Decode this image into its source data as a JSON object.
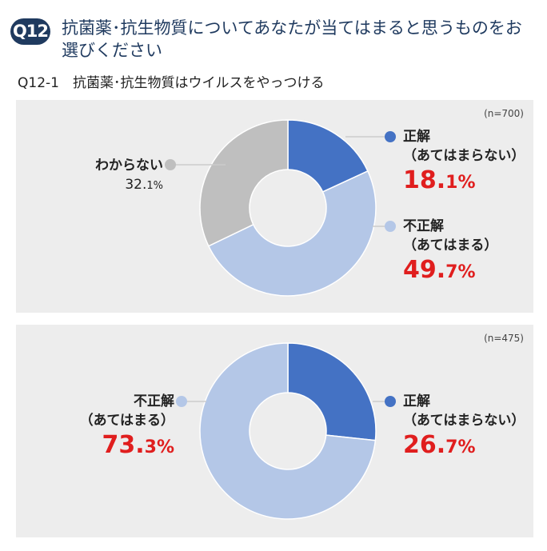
{
  "header": {
    "badge": "Q12",
    "title": "抗菌薬･抗生物質についてあなたが当てはまると思うものをお選びください"
  },
  "subtitle": "Q12-1　抗菌薬･抗生物質はウイルスをやっつける",
  "chart_data": [
    {
      "type": "pie",
      "n_label": "(n=700)",
      "slices": [
        {
          "label_line1": "正解",
          "label_line2": "（あてはまらない）",
          "value": 18.1,
          "pct_int": "18.",
          "pct_dec": "1%",
          "color": "#4472c4"
        },
        {
          "label_line1": "不正解",
          "label_line2": "（あてはまる）",
          "value": 49.7,
          "pct_int": "49.",
          "pct_dec": "7%",
          "color": "#b4c7e7"
        },
        {
          "label_line1": "わからない",
          "value": 32.1,
          "pct_int": "32.",
          "pct_dec": "1%",
          "color": "#bfbfbf"
        }
      ]
    },
    {
      "type": "pie",
      "n_label": "(n=475)",
      "slices": [
        {
          "label_line1": "正解",
          "label_line2": "（あてはまらない）",
          "value": 26.7,
          "pct_int": "26.",
          "pct_dec": "7%",
          "color": "#4472c4"
        },
        {
          "label_line1": "不正解",
          "label_line2": "（あてはまる）",
          "value": 73.3,
          "pct_int": "73.",
          "pct_dec": "3%",
          "color": "#b4c7e7"
        }
      ]
    }
  ]
}
